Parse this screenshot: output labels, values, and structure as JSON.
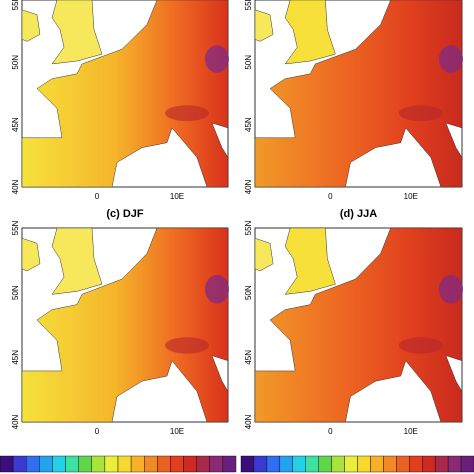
{
  "panels": [
    {
      "lat_labels": [
        "55N",
        "50N",
        "45N",
        "40N"
      ],
      "lon_labels": [
        "0",
        "10E"
      ]
    },
    {
      "lat_labels": [
        "55N",
        "50N",
        "45N",
        "40N"
      ],
      "lon_labels": [
        "0",
        "10E"
      ]
    },
    {
      "title": "(c) DJF",
      "lat_labels": [
        "55N",
        "50N",
        "45N",
        "40N"
      ],
      "lon_labels": [
        "0",
        "10E"
      ]
    },
    {
      "title": "(d) JJA",
      "lat_labels": [
        "55N",
        "50N",
        "45N",
        "40N"
      ],
      "lon_labels": [
        "0",
        "10E"
      ]
    }
  ]
}
